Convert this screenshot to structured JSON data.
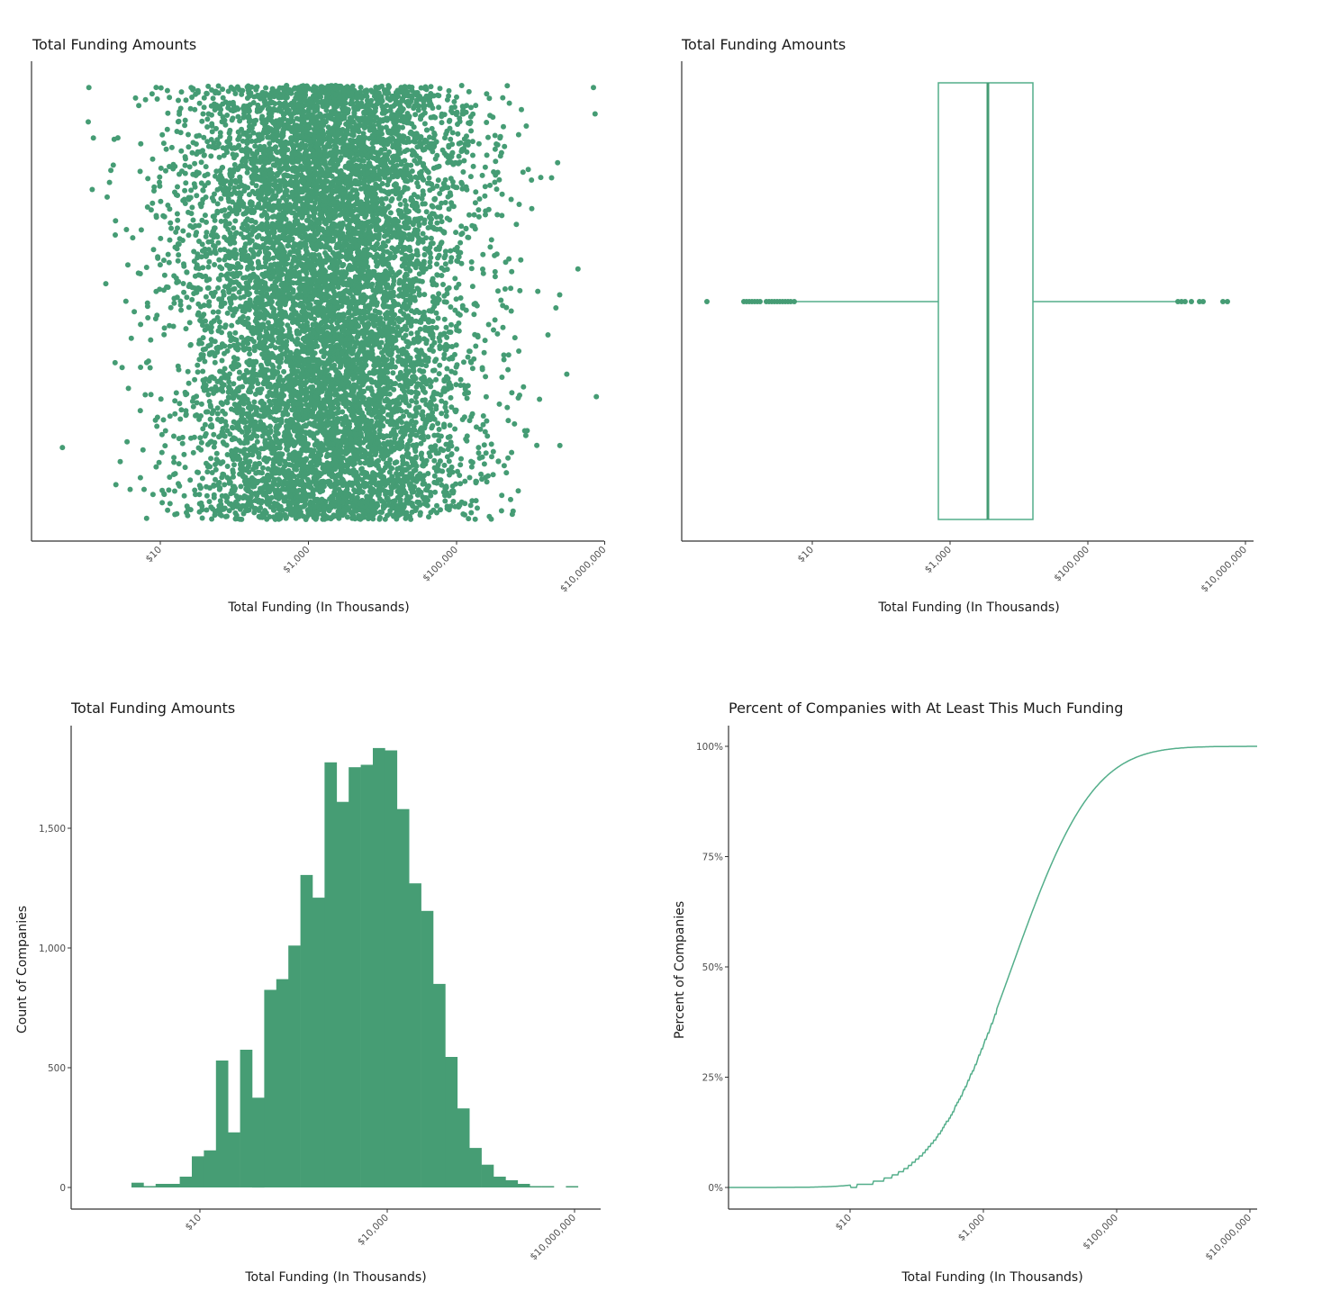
{
  "colors": {
    "point": "#459c74",
    "bar": "#469d74",
    "line": "#53ae8a",
    "axis": "#333333",
    "tick_text": "#4d4d4d"
  },
  "panels": {
    "scatter": {
      "title": "Total Funding Amounts",
      "xlabel": "Total Funding (In Thousands)"
    },
    "box": {
      "title": "Total Funding Amounts",
      "xlabel": "Total Funding (In Thousands)"
    },
    "hist": {
      "title": "Total Funding Amounts",
      "xlabel": "Total Funding (In Thousands)",
      "ylabel": "Count of Companies"
    },
    "ecdf": {
      "title": "Percent of Companies with At Least This Much Funding",
      "xlabel": "Total Funding (In Thousands)",
      "ylabel": "Percent of Companies"
    }
  },
  "chart_data": [
    {
      "type": "scatter",
      "title": "Total Funding Amounts",
      "xlabel": "Total Funding (In Thousands)",
      "ylabel": "",
      "x_scale": "log10",
      "x_ticks": [
        "$10",
        "$1,000",
        "$100,000",
        "$10,000,000"
      ],
      "x_range_approx": [
        0.3,
        5000000
      ],
      "note": "Jittered strip plot of ~30,000 companies; dense core between ~$100 and ~$100,000, sparse tails from ~$0.4 to ~$5,000,000",
      "density_profile_log10": [
        {
          "log10_x": -0.5,
          "relative_density": 0.01
        },
        {
          "log10_x": 0.0,
          "relative_density": 0.02
        },
        {
          "log10_x": 0.5,
          "relative_density": 0.04
        },
        {
          "log10_x": 1.0,
          "relative_density": 0.15
        },
        {
          "log10_x": 1.5,
          "relative_density": 0.35
        },
        {
          "log10_x": 2.0,
          "relative_density": 0.65
        },
        {
          "log10_x": 2.5,
          "relative_density": 0.9
        },
        {
          "log10_x": 3.0,
          "relative_density": 1.0
        },
        {
          "log10_x": 3.5,
          "relative_density": 1.0
        },
        {
          "log10_x": 4.0,
          "relative_density": 0.85
        },
        {
          "log10_x": 4.5,
          "relative_density": 0.5
        },
        {
          "log10_x": 5.0,
          "relative_density": 0.2
        },
        {
          "log10_x": 5.5,
          "relative_density": 0.06
        },
        {
          "log10_x": 6.0,
          "relative_density": 0.02
        },
        {
          "log10_x": 6.5,
          "relative_density": 0.005
        }
      ]
    },
    {
      "type": "box",
      "title": "Total Funding Amounts",
      "xlabel": "Total Funding (In Thousands)",
      "x_scale": "log10",
      "x_ticks": [
        "$10",
        "$1,000",
        "$100,000",
        "$10,000,000"
      ],
      "whisker_low": 0.6,
      "q1": 500,
      "median": 2700,
      "q3": 11000,
      "whisker_high": 2000000,
      "outliers_low": [
        0.3,
        1.0,
        1.1,
        1.2,
        1.3,
        1.4,
        1.6,
        1.8,
        2.0,
        2.2,
        2.4,
        2.6,
        2.8,
        3.0,
        3.2
      ],
      "outliers_high": [
        2200000,
        2700000,
        3300000,
        4300000,
        4600000,
        7000000,
        7700000
      ]
    },
    {
      "type": "bar",
      "subtype": "histogram",
      "title": "Total Funding Amounts",
      "xlabel": "Total Funding (In Thousands)",
      "ylabel": "Count of Companies",
      "x_scale": "log10",
      "x_ticks": [
        "$10",
        "$10,000",
        "$10,000,000"
      ],
      "y_ticks": [
        "0",
        "500",
        "1,000",
        "1,500"
      ],
      "ylim": [
        0,
        1900
      ],
      "bin_left_log10": [
        0.36,
        0.55,
        0.75,
        0.94,
        1.14,
        1.33,
        1.52,
        1.72,
        1.91,
        2.1,
        2.3,
        2.49,
        2.69,
        2.88,
        3.07,
        3.27,
        3.46,
        3.65,
        3.85,
        4.04,
        4.24,
        4.43,
        4.62,
        4.82,
        5.01,
        5.2,
        5.4,
        5.59,
        5.79,
        5.98,
        6.17,
        6.37,
        6.56,
        6.75,
        6.95,
        7.14,
        7.34
      ],
      "values": [
        20,
        5,
        15,
        15,
        45,
        130,
        155,
        530,
        230,
        575,
        375,
        825,
        870,
        1010,
        1305,
        1210,
        1775,
        1610,
        1755,
        1765,
        1835,
        1825,
        1580,
        1270,
        1155,
        850,
        545,
        330,
        165,
        95,
        45,
        30,
        15,
        3,
        3,
        0,
        3
      ]
    },
    {
      "type": "line",
      "subtype": "ecdf_step",
      "title": "Percent of Companies with At Least This Much Funding",
      "xlabel": "Total Funding (In Thousands)",
      "ylabel": "Percent of Companies",
      "x_scale": "log10",
      "x_ticks": [
        "$10",
        "$1,000",
        "$100,000",
        "$10,000,000"
      ],
      "y_ticks": [
        "0%",
        "25%",
        "50%",
        "75%",
        "100%"
      ],
      "ylim": [
        0,
        1
      ],
      "points": [
        {
          "x": 0.3,
          "y": 0.0
        },
        {
          "x": 1,
          "y": 0.0
        },
        {
          "x": 3,
          "y": 0.002
        },
        {
          "x": 10,
          "y": 0.008
        },
        {
          "x": 20,
          "y": 0.02
        },
        {
          "x": 30,
          "y": 0.035
        },
        {
          "x": 60,
          "y": 0.06
        },
        {
          "x": 100,
          "y": 0.09
        },
        {
          "x": 200,
          "y": 0.14
        },
        {
          "x": 400,
          "y": 0.2
        },
        {
          "x": 600,
          "y": 0.25
        },
        {
          "x": 1000,
          "y": 0.33
        },
        {
          "x": 1500,
          "y": 0.41
        },
        {
          "x": 2700,
          "y": 0.5
        },
        {
          "x": 5000,
          "y": 0.62
        },
        {
          "x": 10000,
          "y": 0.74
        },
        {
          "x": 20000,
          "y": 0.85
        },
        {
          "x": 40000,
          "y": 0.93
        },
        {
          "x": 100000,
          "y": 0.975
        },
        {
          "x": 200000,
          "y": 0.99
        },
        {
          "x": 1000000,
          "y": 0.999
        },
        {
          "x": 10000000,
          "y": 1.0
        }
      ]
    }
  ]
}
